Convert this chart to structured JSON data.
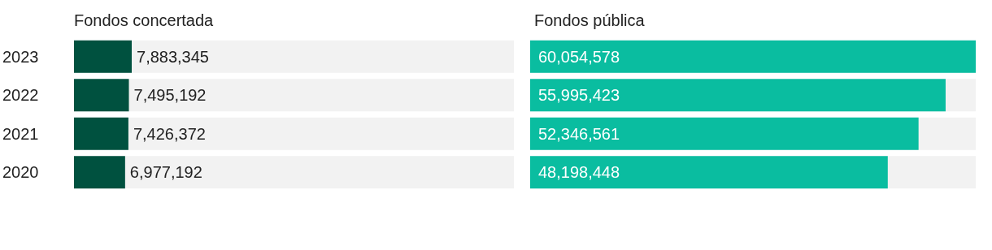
{
  "chart_data": [
    {
      "type": "bar",
      "orientation": "horizontal",
      "title": "Fondos concertada",
      "categories": [
        "2023",
        "2022",
        "2021",
        "2020"
      ],
      "values": [
        7883345,
        7495192,
        7426372,
        6977192
      ],
      "value_labels": [
        "7,883,345",
        "7,495,192",
        "7,426,372",
        "6,977,192"
      ],
      "color": "#00513f",
      "tick_labels": "y"
    },
    {
      "type": "bar",
      "orientation": "horizontal",
      "title": "Fondos pública",
      "categories": [
        "2023",
        "2022",
        "2021",
        "2020"
      ],
      "values": [
        60054578,
        55995423,
        52346561,
        48198448
      ],
      "value_labels": [
        "60,054,578",
        "55,995,423",
        "52,346,561",
        "48,198,448"
      ],
      "color": "#0abda0",
      "tick_labels": false
    }
  ]
}
